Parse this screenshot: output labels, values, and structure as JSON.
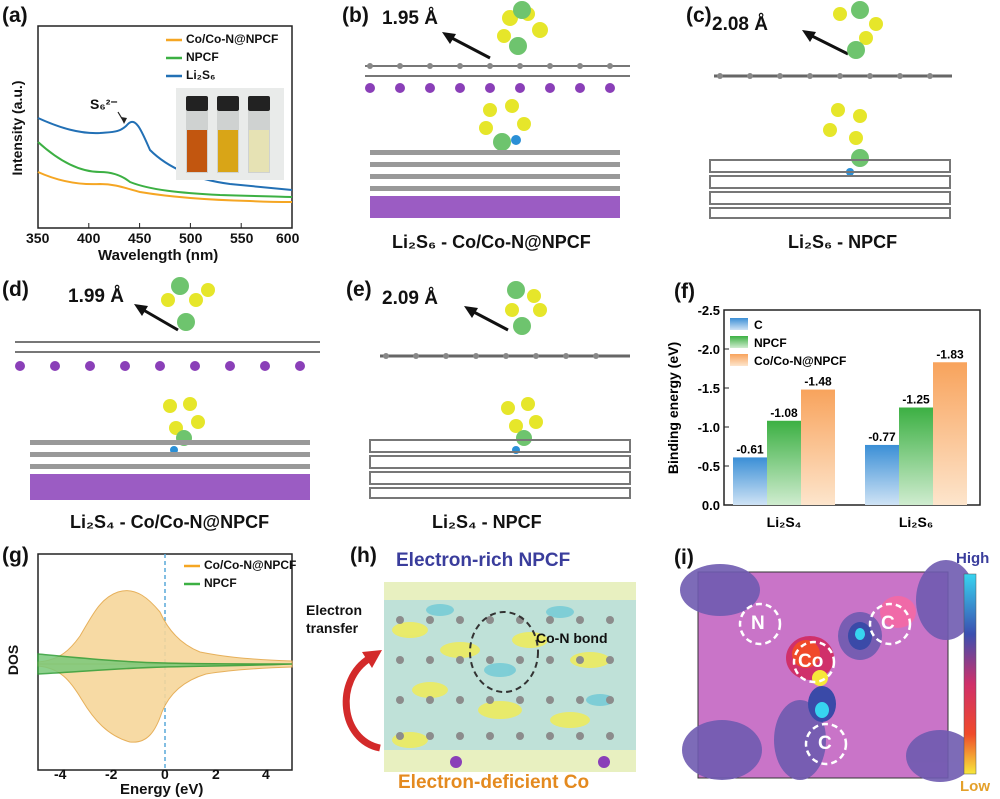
{
  "panels": {
    "a": {
      "label": "(a)",
      "xlabel": "Wavelength (nm)",
      "ylabel": "Intensity (a.u.)",
      "xticks": [
        "350",
        "400",
        "450",
        "500",
        "550",
        "600"
      ],
      "legend": [
        "Co/Co-N@NPCF",
        "NPCF",
        "Li₂S₆"
      ],
      "annotation": "S₆²⁻",
      "colors": [
        "#f5a623",
        "#3cb043",
        "#2270b5"
      ]
    },
    "b": {
      "label": "(b)",
      "distance": "1.95 Å",
      "caption": "Li₂S₆ - Co/Co-N@NPCF"
    },
    "c": {
      "label": "(c)",
      "distance": "2.08 Å",
      "caption": "Li₂S₆ - NPCF"
    },
    "d": {
      "label": "(d)",
      "distance": "1.99 Å",
      "caption": "Li₂S₄ - Co/Co-N@NPCF"
    },
    "e": {
      "label": "(e)",
      "distance": "2.09 Å",
      "caption": "Li₂S₄ - NPCF"
    },
    "f": {
      "label": "(f)"
    },
    "g": {
      "label": "(g)",
      "xlabel": "Energy (eV)",
      "ylabel": "DOS",
      "xticks": [
        "-4",
        "-2",
        "0",
        "2",
        "4"
      ],
      "legend": [
        "Co/Co-N@NPCF",
        "NPCF"
      ]
    },
    "h": {
      "label": "(h)",
      "top": "Electron-rich NPCF",
      "bottom": "Electron-deficient Co",
      "transfer": [
        "Electron",
        "transfer"
      ],
      "bond": "Co-N bond"
    },
    "i": {
      "label": "(i)",
      "high": "High",
      "low": "Low",
      "atoms": [
        "N",
        "C",
        "Co",
        "C"
      ]
    }
  },
  "chart_data": {
    "type": "bar",
    "categories": [
      "Li₂S₄",
      "Li₂S₆"
    ],
    "series": [
      {
        "name": "C",
        "values": [
          -0.61,
          -0.77
        ],
        "color": "#3b8fd6"
      },
      {
        "name": "NPCF",
        "values": [
          -1.08,
          -1.25
        ],
        "color": "#3cb043"
      },
      {
        "name": "Co/Co-N@NPCF",
        "values": [
          -1.48,
          -1.83
        ],
        "color": "#f8a35c"
      }
    ],
    "ylabel": "Binding energy (eV)",
    "ylim": [
      0,
      -2.5
    ],
    "yticks": [
      "-2.5",
      "-2.0",
      "-1.5",
      "-1.0",
      "-0.5",
      "0.0"
    ],
    "value_labels": [
      [
        "-0.61",
        "-0.77"
      ],
      [
        "-1.08",
        "-1.25"
      ],
      [
        "-1.48",
        "-1.83"
      ]
    ],
    "legend": "top-left"
  }
}
